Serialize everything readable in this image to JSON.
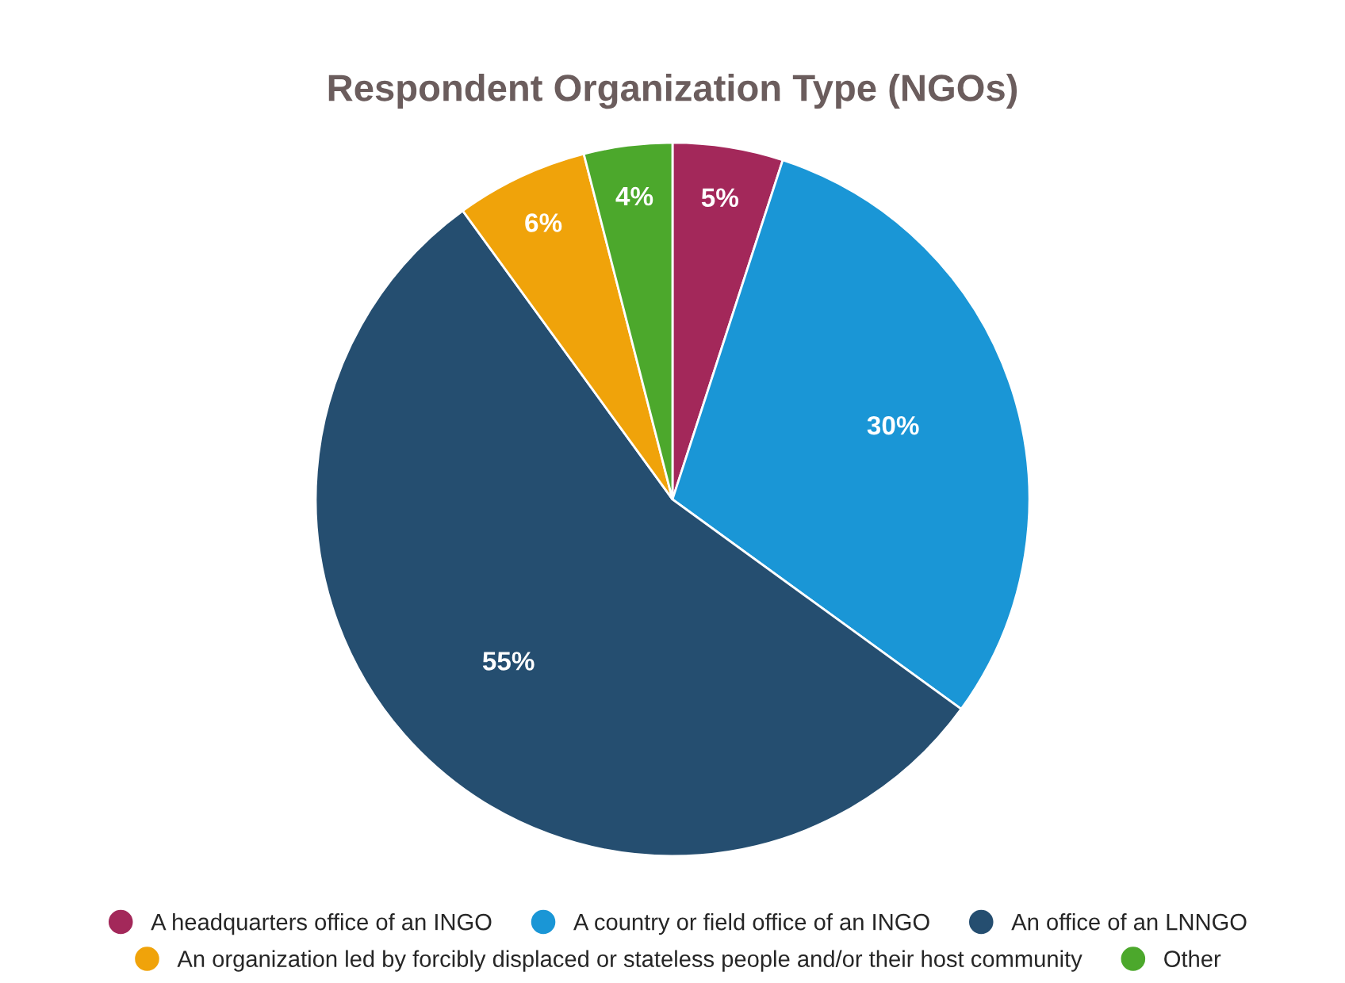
{
  "chart_data": {
    "type": "pie",
    "title": "Respondent Organization Type (NGOs)",
    "categories": [
      "A headquarters office of an INGO",
      "A country or field office of an INGO",
      "An office of an LNNGO",
      "An organization led by forcibly displaced or stateless people and/or their host community",
      "Other"
    ],
    "values": [
      5,
      30,
      55,
      6,
      4
    ],
    "colors": [
      "#a3285a",
      "#1a96d6",
      "#254e70",
      "#f0a30a",
      "#4ca82c"
    ],
    "value_labels": [
      "5%",
      "30%",
      "55%",
      "6%",
      "4%"
    ],
    "legend": "bottom"
  }
}
